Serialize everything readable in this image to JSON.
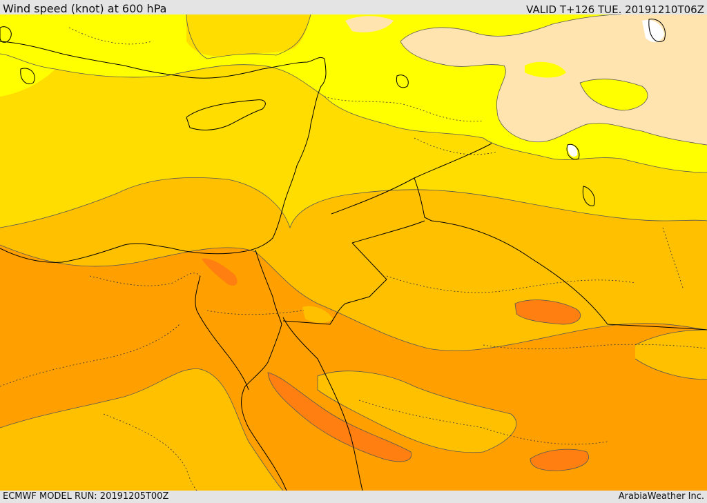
{
  "header": {
    "title": "Wind speed (knot) at 600 hPa",
    "valid_time": "VALID T+126 TUE. 20191210T06Z"
  },
  "footer": {
    "model_run": "ECMWF MODEL RUN: 20191205T00Z",
    "credit": "ArabiaWeather Inc."
  },
  "map": {
    "fill_colors": {
      "band_1": "#ffffff",
      "band_2": "#ffe4b0",
      "band_3": "#ffff00",
      "band_4": "#ffdd00",
      "band_5": "#ffc000",
      "band_6": "#ffa000",
      "band_7": "#ff8010"
    },
    "coastline_color": "#000000",
    "contour_color": "#555555"
  }
}
